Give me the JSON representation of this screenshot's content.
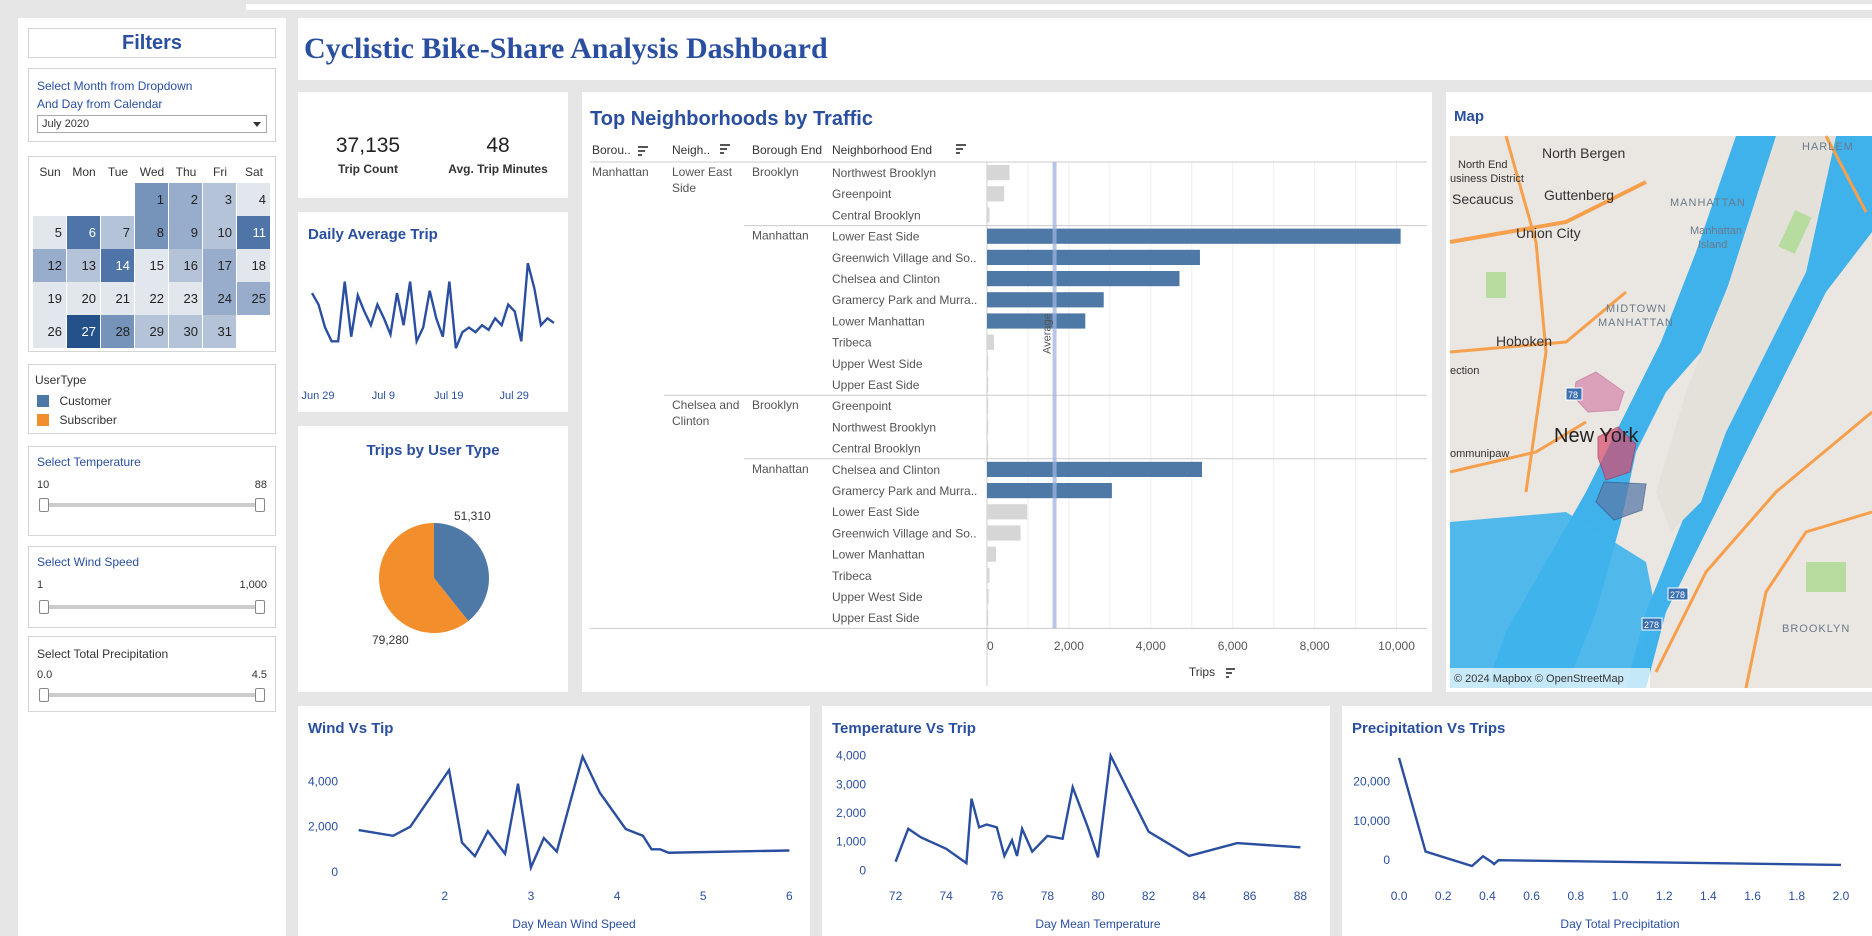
{
  "dashboard": {
    "title": "Cyclistic Bike-Share Analysis Dashboard"
  },
  "filters": {
    "title": "Filters",
    "month_prompt_1": "Select Month from Dropdown",
    "month_prompt_2": "And Day from Calendar",
    "month_value": "July 2020",
    "calendar": {
      "weekdays": [
        "Sun",
        "Mon",
        "Tue",
        "Wed",
        "Thu",
        "Fri",
        "Sat"
      ],
      "offset": 3,
      "days": [
        1,
        2,
        3,
        4,
        5,
        6,
        7,
        8,
        9,
        10,
        11,
        12,
        13,
        14,
        15,
        16,
        17,
        18,
        19,
        20,
        21,
        22,
        23,
        24,
        25,
        26,
        27,
        28,
        29,
        30,
        31
      ],
      "shades": [
        3,
        2,
        1,
        0,
        0,
        4,
        1,
        3,
        2,
        1,
        4,
        2,
        1,
        4,
        0,
        1,
        2,
        0,
        0,
        0,
        0,
        0,
        0,
        2,
        2,
        0,
        5,
        3,
        1,
        1,
        1
      ],
      "palette": [
        "#e2e7ee",
        "#b4c3d8",
        "#97adcb",
        "#7693b9",
        "#4f74a8",
        "#24518a"
      ]
    },
    "usertype": {
      "title": "UserType",
      "items": [
        {
          "label": "Customer",
          "color": "#4e79a7"
        },
        {
          "label": "Subscriber",
          "color": "#f28e2b"
        }
      ]
    },
    "temperature": {
      "label": "Select Temperature",
      "min": "10",
      "max": "88"
    },
    "wind": {
      "label": "Select Wind Speed",
      "min": "1",
      "max": "1,000"
    },
    "precip": {
      "label": "Select Total Precipitation",
      "min": "0.0",
      "max": "4.5"
    }
  },
  "kpis": {
    "trip_count": {
      "value": "37,135",
      "label": "Trip Count"
    },
    "avg_minutes": {
      "value": "48",
      "label": "Avg. Trip Minutes"
    }
  },
  "map": {
    "title": "Map",
    "labels": [
      "North Bergen",
      "North End",
      "usiness District",
      "Secaucus",
      "Guttenberg",
      "Union City",
      "MANHATTAN",
      "Manhattan",
      "Island",
      "HARLEM",
      "MIDTOWN",
      "MANHATTAN",
      "Hoboken",
      "New York",
      "ection",
      "ommunipaw",
      "BROOKLYN"
    ],
    "attribution": "© 2024 Mapbox  © OpenStreetMap",
    "route_badges": [
      "78",
      "278",
      "278"
    ]
  },
  "chart_data": [
    {
      "id": "daily-average-trip",
      "type": "line",
      "title": "Daily Average Trip",
      "x_ticks": [
        "Jun 29",
        "Jul 9",
        "Jul 19",
        "Jul 29"
      ],
      "values": [
        45,
        40,
        30,
        24,
        24,
        50,
        26,
        44,
        37,
        31,
        40,
        34,
        27,
        45,
        31,
        50,
        24,
        30,
        46,
        34,
        26,
        50,
        21,
        28,
        30,
        28,
        31,
        29,
        34,
        31,
        40,
        37,
        24,
        58,
        47,
        31,
        34,
        32
      ],
      "ylim": [
        15,
        62
      ]
    },
    {
      "id": "trips-by-user-type",
      "type": "pie",
      "title": "Trips by User Type",
      "slices": [
        {
          "label": "51,310",
          "value": 51310,
          "color": "#4e79a7"
        },
        {
          "label": "79,280",
          "value": 79280,
          "color": "#f28e2b"
        }
      ]
    },
    {
      "id": "top-neighborhoods",
      "type": "bar",
      "title": "Top Neighborhoods by Traffic",
      "columns": [
        "Borou..",
        "Neigh..",
        "Borough End",
        "Neighborhood End"
      ],
      "borough": "Manhattan",
      "neighborhoods": [
        "Lower East Side",
        "Chelsea and Clinton"
      ],
      "borough_ends": [
        "Brooklyn",
        "Manhattan",
        "Brooklyn",
        "Manhattan"
      ],
      "rows": [
        {
          "label": "Northwest Brooklyn",
          "value": 550,
          "highlight": false
        },
        {
          "label": "Greenpoint",
          "value": 420,
          "highlight": false
        },
        {
          "label": "Central Brooklyn",
          "value": 60,
          "highlight": false
        },
        {
          "label": "Lower East Side",
          "value": 10100,
          "highlight": true
        },
        {
          "label": "Greenwich Village and So..",
          "value": 5200,
          "highlight": true
        },
        {
          "label": "Chelsea and Clinton",
          "value": 4700,
          "highlight": true
        },
        {
          "label": "Gramercy Park and Murra..",
          "value": 2850,
          "highlight": true
        },
        {
          "label": "Lower Manhattan",
          "value": 2400,
          "highlight": true
        },
        {
          "label": "Tribeca",
          "value": 170,
          "highlight": false
        },
        {
          "label": "Upper West Side",
          "value": 30,
          "highlight": false
        },
        {
          "label": "Upper East Side",
          "value": 30,
          "highlight": false
        },
        {
          "label": "Greenpoint",
          "value": 30,
          "highlight": false
        },
        {
          "label": "Northwest Brooklyn",
          "value": 30,
          "highlight": false
        },
        {
          "label": "Central Brooklyn",
          "value": 30,
          "highlight": false
        },
        {
          "label": "Chelsea and Clinton",
          "value": 5250,
          "highlight": true
        },
        {
          "label": "Gramercy Park and Murra..",
          "value": 3050,
          "highlight": true
        },
        {
          "label": "Lower East Side",
          "value": 980,
          "highlight": false
        },
        {
          "label": "Greenwich Village and So..",
          "value": 820,
          "highlight": false
        },
        {
          "label": "Lower Manhattan",
          "value": 220,
          "highlight": false
        },
        {
          "label": "Tribeca",
          "value": 60,
          "highlight": false
        },
        {
          "label": "Upper West Side",
          "value": 40,
          "highlight": false
        },
        {
          "label": "Upper East Side",
          "value": 30,
          "highlight": false
        }
      ],
      "average": 1650,
      "average_label": "Average",
      "x_ticks": [
        0,
        2000,
        4000,
        6000,
        8000,
        10000
      ],
      "x_tick_labels": [
        "0",
        "2,000",
        "4,000",
        "6,000",
        "8,000",
        "10,000"
      ],
      "xlabel": "Trips",
      "xlim": [
        0,
        10500
      ]
    },
    {
      "id": "wind-vs-tip",
      "type": "line",
      "title": "Wind Vs Tip",
      "xlabel": "Day Mean Wind Speed",
      "x": [
        1.0,
        1.4,
        1.6,
        2.05,
        2.2,
        2.35,
        2.5,
        2.7,
        2.85,
        3.0,
        3.15,
        3.3,
        3.6,
        3.8,
        4.1,
        4.3,
        4.4,
        4.5,
        4.6,
        6.0
      ],
      "y": [
        1850,
        1600,
        2000,
        4500,
        1300,
        700,
        1800,
        800,
        3900,
        200,
        1500,
        900,
        5100,
        3500,
        1900,
        1600,
        1000,
        1000,
        850,
        950
      ],
      "x_ticks": [
        2,
        3,
        4,
        5,
        6
      ],
      "y_ticks": [
        0,
        2000,
        4000
      ],
      "y_tick_labels": [
        "0",
        "2,000",
        "4,000"
      ],
      "xlim": [
        0.9,
        6.1
      ],
      "ylim": [
        0,
        5300
      ]
    },
    {
      "id": "temperature-vs-trip",
      "type": "line",
      "title": "Temperature Vs Trip",
      "xlabel": "Day Mean Temperature",
      "x": [
        72.0,
        72.5,
        73.0,
        74.0,
        74.8,
        75.0,
        75.3,
        75.6,
        76.0,
        76.3,
        76.6,
        76.8,
        77.0,
        77.4,
        78.0,
        78.6,
        79.0,
        79.6,
        80.0,
        80.5,
        82.0,
        83.6,
        85.5,
        88.0
      ],
      "y": [
        300,
        1450,
        1150,
        750,
        250,
        2500,
        1500,
        1600,
        1500,
        500,
        1050,
        500,
        1450,
        650,
        1200,
        1100,
        2900,
        1500,
        450,
        4000,
        1350,
        500,
        950,
        800
      ],
      "x_ticks": [
        72,
        74,
        76,
        78,
        80,
        82,
        84,
        86,
        88
      ],
      "y_ticks": [
        0,
        1000,
        2000,
        3000,
        4000
      ],
      "y_tick_labels": [
        "0",
        "1,000",
        "2,000",
        "3,000",
        "4,000"
      ],
      "xlim": [
        71.7,
        88.3
      ],
      "ylim": [
        -200,
        4200
      ]
    },
    {
      "id": "precipitation-vs-trips",
      "type": "line",
      "title": "Precipitation Vs Trips",
      "xlabel": "Day Total Precipitation",
      "x": [
        0.0,
        0.12,
        0.33,
        0.38,
        0.42,
        0.43,
        0.45,
        2.0
      ],
      "y": [
        26000,
        2200,
        -1500,
        1000,
        -500,
        -1000,
        0,
        -1200
      ],
      "x_ticks": [
        0.0,
        0.2,
        0.4,
        0.6,
        0.8,
        1.0,
        1.2,
        1.4,
        1.6,
        1.8,
        2.0
      ],
      "x_tick_labels": [
        "0.0",
        "0.2",
        "0.4",
        "0.6",
        "0.8",
        "1.0",
        "1.2",
        "1.4",
        "1.6",
        "1.8",
        "2.0"
      ],
      "y_ticks": [
        0,
        10000,
        20000
      ],
      "y_tick_labels": [
        "0",
        "10,000",
        "20,000"
      ],
      "xlim": [
        -0.05,
        2.05
      ],
      "ylim": [
        -2500,
        27000
      ]
    }
  ]
}
